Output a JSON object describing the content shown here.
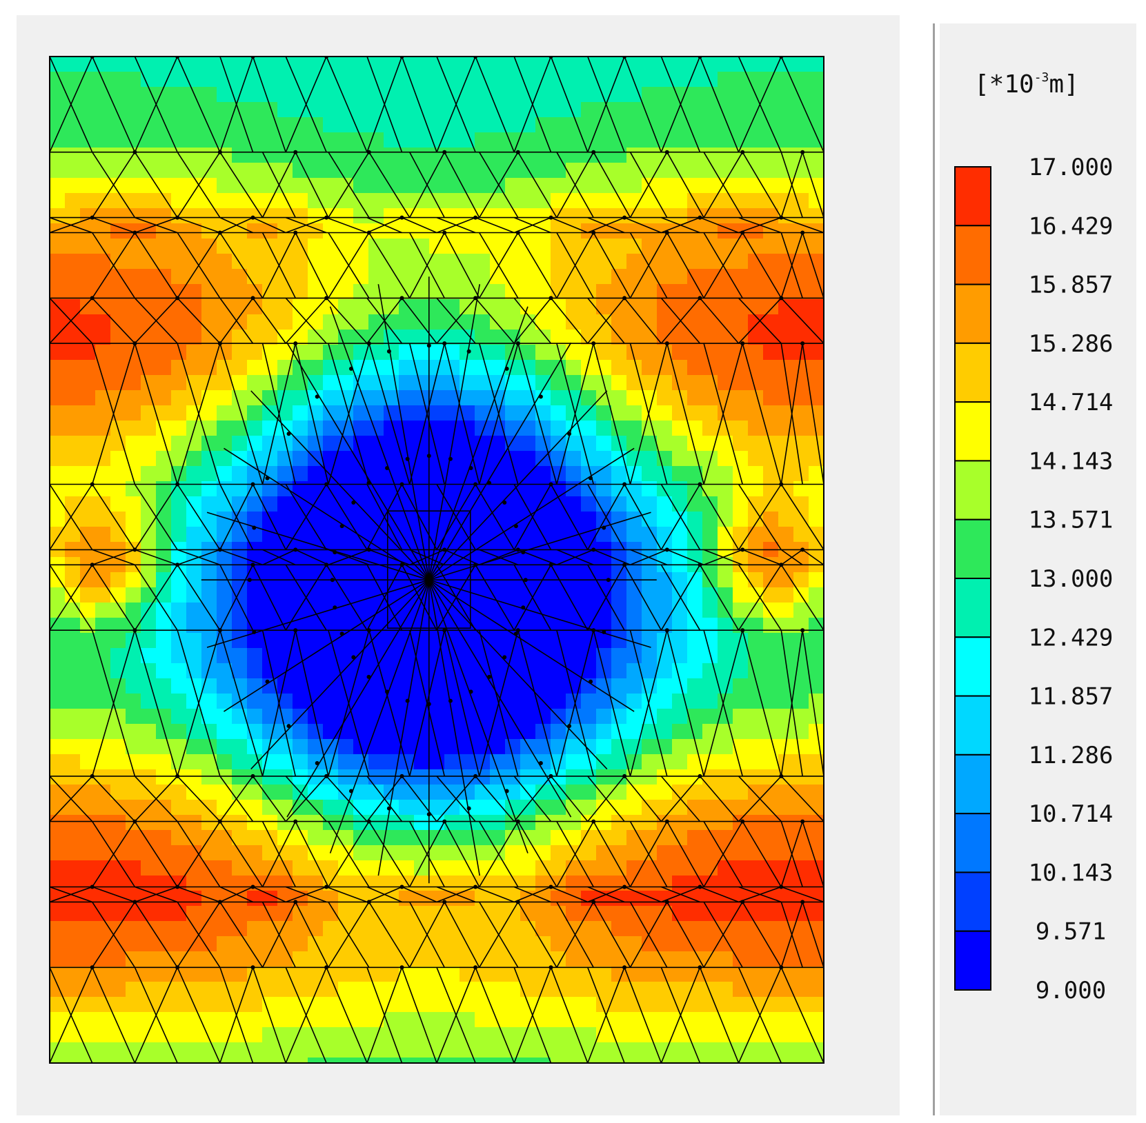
{
  "chart_data": {
    "type": "heatmap",
    "title": "",
    "xlabel": "",
    "ylabel": "",
    "colorbar": {
      "unit_prefix": "[*10",
      "unit_exponent": "-3",
      "unit_suffix": "m]",
      "levels": [
        "17.000",
        "16.429",
        "15.857",
        "15.286",
        "14.714",
        "14.143",
        "13.571",
        "13.000",
        "12.429",
        "11.857",
        "11.286",
        "10.714",
        "10.143",
        "9.571",
        "9.000"
      ],
      "colors": [
        "#ff2d00",
        "#ff6c00",
        "#ff9c00",
        "#ffcc00",
        "#ffff00",
        "#a8ff2a",
        "#2ee85a",
        "#00f0b0",
        "#00ffff",
        "#00d8ff",
        "#00a8ff",
        "#0078ff",
        "#0040ff",
        "#0000ff"
      ]
    },
    "value_range": [
      9.0,
      17.0
    ],
    "field": {
      "description_min": 9.0,
      "description_max": 17.0
    },
    "mesh": "triangular finite element mesh",
    "grid": false
  }
}
